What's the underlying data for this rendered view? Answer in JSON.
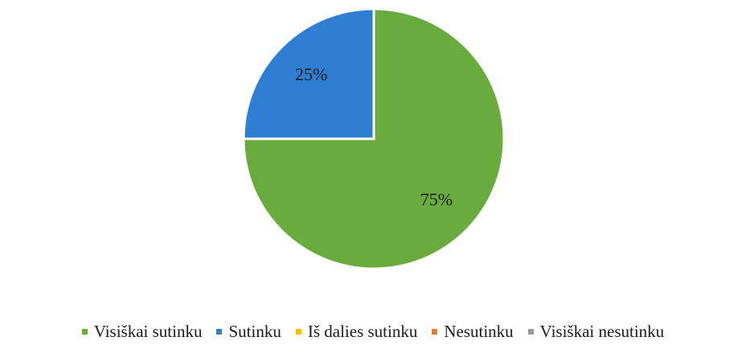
{
  "chart_data": {
    "type": "pie",
    "categories": [
      "Visiškai sutinku",
      "Sutinku",
      "Iš dalies sutinku",
      "Nesutinku",
      "Visiškai nesutinku"
    ],
    "values": [
      75,
      25,
      0,
      0,
      0
    ],
    "labels": [
      "75%",
      "25%",
      "",
      "",
      ""
    ],
    "colors": [
      "#6aab3e",
      "#2e7fd1",
      "#f5c000",
      "#ec7a2a",
      "#9a9a9a"
    ],
    "legend_position": "bottom",
    "start_angle": "12 o'clock",
    "direction": "clockwise"
  }
}
